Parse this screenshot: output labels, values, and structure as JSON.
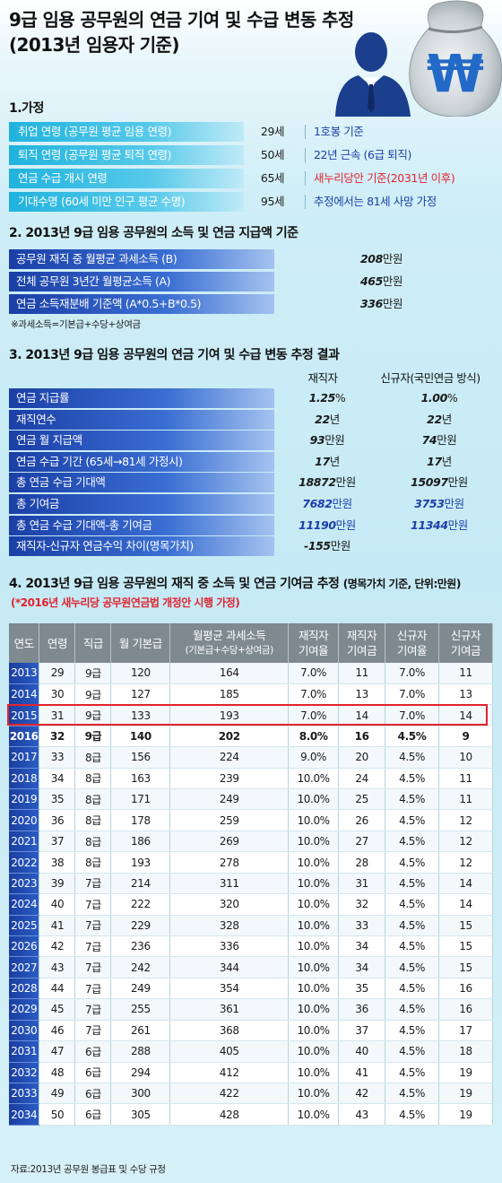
{
  "title_line1": "9급 임용 공무원의 연금 기여 및 수급 변동 추정",
  "title_line2": "(2013년 임용자 기준)",
  "currency_symbol": "₩",
  "section1": {
    "title": "1.가정",
    "rows": [
      {
        "label": "취업 연령 (공무원 평균 임용 연령)",
        "value": "29세",
        "note": "1호봉 기준",
        "note_color": "blue"
      },
      {
        "label": "퇴직 연령 (공무원 평균 퇴직 연령)",
        "value": "50세",
        "note": "22년 근속 (6급 퇴직)",
        "note_color": "blue"
      },
      {
        "label": "연금 수급 개시 연령",
        "value": "65세",
        "note": "새누리당안 기준(2031년 이후)",
        "note_color": "red"
      },
      {
        "label": "기대수명 (60세 미만 인구 평균 수명)",
        "value": "95세",
        "note": "추정에서는 81세 사망 가정",
        "note_color": "blue"
      }
    ]
  },
  "section2": {
    "title": "2. 2013년 9급 임용 공무원의 소득 및 연금 지급액 기준",
    "rows": [
      {
        "label": "공무원 재직 중 월평균 과세소득 (B)",
        "num": "208",
        "unit": "만원"
      },
      {
        "label": "전체 공무원 3년간 월평균소득 (A)",
        "num": "465",
        "unit": "만원"
      },
      {
        "label": "연금 소득재분배 기준액 (A*0.5+B*0.5)",
        "num": "336",
        "unit": "만원"
      }
    ],
    "note": "※과세소득=기본급+수당+상여금"
  },
  "section3": {
    "title": "3. 2013년 9급 임용 공무원의 연금 기여 및 수급 변동 추정 결과",
    "col1": "재직자",
    "col2": "신규자(국민연금 방식)",
    "rows": [
      {
        "label": "연금 지급률",
        "v1": "1.25",
        "u1": "%",
        "v2": "1.00",
        "u2": "%",
        "blue": false
      },
      {
        "label": "재직연수",
        "v1": "22",
        "u1": "년",
        "v2": "22",
        "u2": "년",
        "blue": false
      },
      {
        "label": "연금 월 지급액",
        "v1": "93",
        "u1": "만원",
        "v2": "74",
        "u2": "만원",
        "blue": false
      },
      {
        "label": "연금 수급 기간 (65세→81세 가정시)",
        "v1": "17",
        "u1": "년",
        "v2": "17",
        "u2": "년",
        "blue": false
      },
      {
        "label": "총 연금 수급 기대액",
        "v1": "18872",
        "u1": "만원",
        "v2": "15097",
        "u2": "만원",
        "blue": false
      },
      {
        "label": "총 기여금",
        "v1": "7682",
        "u1": "만원",
        "v2": "3753",
        "u2": "만원",
        "blue": true
      },
      {
        "label": "총 연금 수급 기대액-총 기여금",
        "v1": "11190",
        "u1": "만원",
        "v2": "11344",
        "u2": "만원",
        "blue": true
      },
      {
        "label": "재직자-신규자 연금수익 차이(명목가치)",
        "v1": "-155",
        "u1": "만원",
        "v2": "",
        "u2": "",
        "blue": false
      }
    ]
  },
  "section4": {
    "title": "4. 2013년 9급 임용 공무원의 재직 중 소득 및 연금 기여금 추정",
    "title_suffix": "(명목가치 기준, 단위:만원)",
    "note": "(*2016년 새누리당 공무원연금법 개정안 시행 가정)",
    "headers": {
      "year": "연도",
      "age": "연령",
      "grade": "직급",
      "base": "월 기본급",
      "income": "월평균 과세소득",
      "income_sub": "(기본급+수당+상여금)",
      "c1a": "재직자",
      "c1b": "기여율",
      "c2a": "재직자",
      "c2b": "기여금",
      "c3a": "신규자",
      "c3b": "기여율",
      "c4a": "신규자",
      "c4b": "기여금"
    },
    "rows": [
      [
        "2013",
        "29",
        "9급",
        "120",
        "164",
        "7.0%",
        "11",
        "7.0%",
        "11"
      ],
      [
        "2014",
        "30",
        "9급",
        "127",
        "185",
        "7.0%",
        "13",
        "7.0%",
        "13"
      ],
      [
        "2015",
        "31",
        "9급",
        "133",
        "193",
        "7.0%",
        "14",
        "7.0%",
        "14"
      ],
      [
        "2016",
        "32",
        "9급",
        "140",
        "202",
        "8.0%",
        "16",
        "4.5%",
        "9"
      ],
      [
        "2017",
        "33",
        "8급",
        "156",
        "224",
        "9.0%",
        "20",
        "4.5%",
        "10"
      ],
      [
        "2018",
        "34",
        "8급",
        "163",
        "239",
        "10.0%",
        "24",
        "4.5%",
        "11"
      ],
      [
        "2019",
        "35",
        "8급",
        "171",
        "249",
        "10.0%",
        "25",
        "4.5%",
        "11"
      ],
      [
        "2020",
        "36",
        "8급",
        "178",
        "259",
        "10.0%",
        "26",
        "4.5%",
        "12"
      ],
      [
        "2021",
        "37",
        "8급",
        "186",
        "269",
        "10.0%",
        "27",
        "4.5%",
        "12"
      ],
      [
        "2022",
        "38",
        "8급",
        "193",
        "278",
        "10.0%",
        "28",
        "4.5%",
        "12"
      ],
      [
        "2023",
        "39",
        "7급",
        "214",
        "311",
        "10.0%",
        "31",
        "4.5%",
        "14"
      ],
      [
        "2024",
        "40",
        "7급",
        "222",
        "320",
        "10.0%",
        "32",
        "4.5%",
        "14"
      ],
      [
        "2025",
        "41",
        "7급",
        "229",
        "328",
        "10.0%",
        "33",
        "4.5%",
        "15"
      ],
      [
        "2026",
        "42",
        "7급",
        "236",
        "336",
        "10.0%",
        "34",
        "4.5%",
        "15"
      ],
      [
        "2027",
        "43",
        "7급",
        "242",
        "344",
        "10.0%",
        "34",
        "4.5%",
        "15"
      ],
      [
        "2028",
        "44",
        "7급",
        "249",
        "354",
        "10.0%",
        "35",
        "4.5%",
        "16"
      ],
      [
        "2029",
        "45",
        "7급",
        "255",
        "361",
        "10.0%",
        "36",
        "4.5%",
        "16"
      ],
      [
        "2030",
        "46",
        "7급",
        "261",
        "368",
        "10.0%",
        "37",
        "4.5%",
        "17"
      ],
      [
        "2031",
        "47",
        "6급",
        "288",
        "405",
        "10.0%",
        "40",
        "4.5%",
        "18"
      ],
      [
        "2032",
        "48",
        "6급",
        "294",
        "412",
        "10.0%",
        "41",
        "4.5%",
        "19"
      ],
      [
        "2033",
        "49",
        "6급",
        "300",
        "422",
        "10.0%",
        "42",
        "4.5%",
        "19"
      ],
      [
        "2034",
        "50",
        "6급",
        "305",
        "428",
        "10.0%",
        "43",
        "4.5%",
        "19"
      ]
    ]
  },
  "source": "자료:2013년 공무원 봉급표 및 수당 규정"
}
